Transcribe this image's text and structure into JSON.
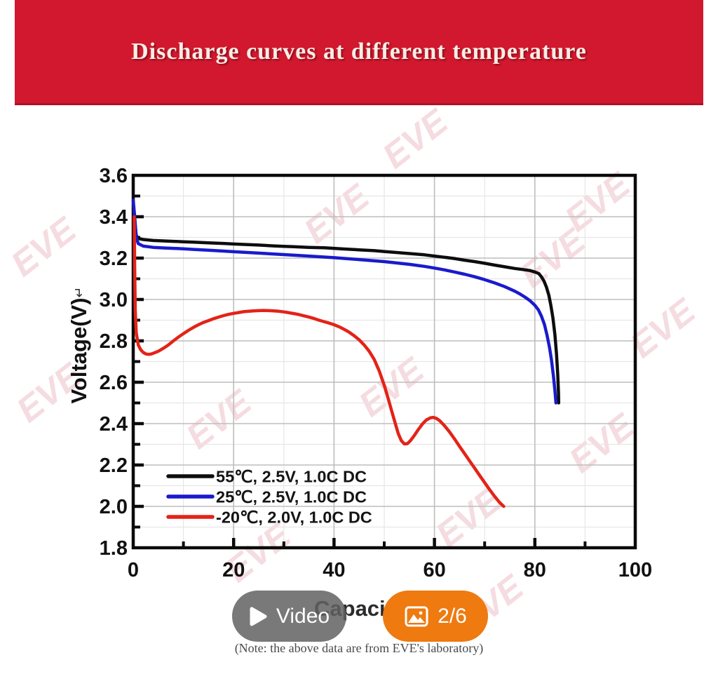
{
  "banner": {
    "title": "Discharge curves at different temperature",
    "bg_color": "#d2182e",
    "text_color": "#f7eee6"
  },
  "watermark": {
    "text": "EVE",
    "color": "#de8c98"
  },
  "chart_data": {
    "type": "line",
    "title": "",
    "xlabel": "Capacity(Ah)",
    "ylabel": "Voltage(V)",
    "ylabel_suffix": "↵",
    "xlim": [
      0,
      100
    ],
    "ylim": [
      1.8,
      3.6
    ],
    "x_tick_labels": [
      "0",
      "20",
      "40",
      "60",
      "80",
      "100"
    ],
    "x_major_ticks": [
      0,
      20,
      40,
      60,
      80,
      100
    ],
    "x_minor_step": 10,
    "y_tick_labels": [
      "1.8",
      "2.0",
      "2.2",
      "2.4",
      "2.6",
      "2.8",
      "3.0",
      "3.2",
      "3.4",
      "3.6"
    ],
    "y_major_ticks": [
      1.8,
      2.0,
      2.2,
      2.4,
      2.6,
      2.8,
      3.0,
      3.2,
      3.4,
      3.6
    ],
    "y_minor_step": 0.1,
    "grid": "major-and-minor",
    "legend_position": "inside-bottom-left",
    "series": [
      {
        "name": "55℃, 2.5V, 1.0C DC",
        "color": "#0d0d0d",
        "points": [
          [
            0,
            3.44
          ],
          [
            0.3,
            3.38
          ],
          [
            0.6,
            3.31
          ],
          [
            1,
            3.295
          ],
          [
            2,
            3.29
          ],
          [
            4,
            3.285
          ],
          [
            6,
            3.283
          ],
          [
            8,
            3.281
          ],
          [
            10,
            3.279
          ],
          [
            12,
            3.277
          ],
          [
            15,
            3.274
          ],
          [
            18,
            3.271
          ],
          [
            20,
            3.268
          ],
          [
            22,
            3.266
          ],
          [
            25,
            3.263
          ],
          [
            28,
            3.259
          ],
          [
            30,
            3.257
          ],
          [
            32,
            3.255
          ],
          [
            35,
            3.252
          ],
          [
            38,
            3.25
          ],
          [
            40,
            3.247
          ],
          [
            42,
            3.244
          ],
          [
            45,
            3.24
          ],
          [
            48,
            3.236
          ],
          [
            50,
            3.232
          ],
          [
            52,
            3.228
          ],
          [
            55,
            3.222
          ],
          [
            58,
            3.216
          ],
          [
            60,
            3.21
          ],
          [
            62,
            3.204
          ],
          [
            64,
            3.198
          ],
          [
            66,
            3.19
          ],
          [
            68,
            3.183
          ],
          [
            70,
            3.175
          ],
          [
            72,
            3.166
          ],
          [
            74,
            3.158
          ],
          [
            76,
            3.15
          ],
          [
            77.5,
            3.145
          ],
          [
            79,
            3.14
          ],
          [
            80,
            3.133
          ],
          [
            80.8,
            3.125
          ],
          [
            81.3,
            3.11
          ],
          [
            81.8,
            3.09
          ],
          [
            82.3,
            3.06
          ],
          [
            82.8,
            3.02
          ],
          [
            83.2,
            2.97
          ],
          [
            83.6,
            2.91
          ],
          [
            84,
            2.83
          ],
          [
            84.3,
            2.74
          ],
          [
            84.55,
            2.64
          ],
          [
            84.7,
            2.55
          ],
          [
            84.75,
            2.5
          ]
        ]
      },
      {
        "name": "25℃, 2.5V, 1.0C DC",
        "color": "#1a1acc",
        "points": [
          [
            0,
            3.48
          ],
          [
            0.3,
            3.4
          ],
          [
            0.6,
            3.3
          ],
          [
            1,
            3.27
          ],
          [
            2,
            3.258
          ],
          [
            4,
            3.252
          ],
          [
            6,
            3.249
          ],
          [
            8,
            3.247
          ],
          [
            10,
            3.245
          ],
          [
            12,
            3.242
          ],
          [
            15,
            3.238
          ],
          [
            18,
            3.234
          ],
          [
            20,
            3.231
          ],
          [
            25,
            3.224
          ],
          [
            30,
            3.217
          ],
          [
            35,
            3.21
          ],
          [
            40,
            3.202
          ],
          [
            45,
            3.193
          ],
          [
            50,
            3.183
          ],
          [
            55,
            3.17
          ],
          [
            58,
            3.16
          ],
          [
            60,
            3.152
          ],
          [
            62,
            3.143
          ],
          [
            64,
            3.133
          ],
          [
            66,
            3.122
          ],
          [
            68,
            3.11
          ],
          [
            70,
            3.096
          ],
          [
            72,
            3.08
          ],
          [
            74,
            3.062
          ],
          [
            76,
            3.04
          ],
          [
            77,
            3.027
          ],
          [
            78,
            3.012
          ],
          [
            79,
            2.995
          ],
          [
            80,
            2.972
          ],
          [
            80.7,
            2.95
          ],
          [
            81.3,
            2.92
          ],
          [
            81.9,
            2.88
          ],
          [
            82.4,
            2.83
          ],
          [
            82.9,
            2.77
          ],
          [
            83.3,
            2.71
          ],
          [
            83.7,
            2.63
          ],
          [
            84,
            2.56
          ],
          [
            84.2,
            2.5
          ]
        ]
      },
      {
        "name": "-20℃, 2.0V, 1.0C DC",
        "color": "#e32318",
        "points": [
          [
            0.2,
            3.4
          ],
          [
            0.3,
            3.15
          ],
          [
            0.4,
            2.95
          ],
          [
            0.6,
            2.84
          ],
          [
            1,
            2.78
          ],
          [
            1.5,
            2.757
          ],
          [
            2,
            2.744
          ],
          [
            2.5,
            2.737
          ],
          [
            3,
            2.735
          ],
          [
            3.5,
            2.736
          ],
          [
            4,
            2.74
          ],
          [
            5,
            2.75
          ],
          [
            6,
            2.764
          ],
          [
            7,
            2.78
          ],
          [
            8,
            2.8
          ],
          [
            9,
            2.818
          ],
          [
            10,
            2.835
          ],
          [
            11,
            2.851
          ],
          [
            12,
            2.865
          ],
          [
            13,
            2.878
          ],
          [
            14,
            2.889
          ],
          [
            15,
            2.898
          ],
          [
            16,
            2.907
          ],
          [
            17,
            2.915
          ],
          [
            18,
            2.922
          ],
          [
            19,
            2.928
          ],
          [
            20,
            2.933
          ],
          [
            21,
            2.937
          ],
          [
            22,
            2.941
          ],
          [
            23,
            2.943
          ],
          [
            24,
            2.945
          ],
          [
            25,
            2.946
          ],
          [
            26,
            2.947
          ],
          [
            27,
            2.946
          ],
          [
            28,
            2.945
          ],
          [
            29,
            2.943
          ],
          [
            30,
            2.94
          ],
          [
            31,
            2.936
          ],
          [
            32,
            2.932
          ],
          [
            33,
            2.927
          ],
          [
            34,
            2.921
          ],
          [
            35,
            2.915
          ],
          [
            36,
            2.908
          ],
          [
            37,
            2.9
          ],
          [
            38,
            2.893
          ],
          [
            39,
            2.886
          ],
          [
            40,
            2.878
          ],
          [
            41,
            2.868
          ],
          [
            42,
            2.856
          ],
          [
            43,
            2.842
          ],
          [
            44,
            2.825
          ],
          [
            45,
            2.805
          ],
          [
            46,
            2.78
          ],
          [
            47,
            2.75
          ],
          [
            48,
            2.71
          ],
          [
            49,
            2.655
          ],
          [
            50,
            2.585
          ],
          [
            50.8,
            2.52
          ],
          [
            51.5,
            2.46
          ],
          [
            52.2,
            2.4
          ],
          [
            52.8,
            2.352
          ],
          [
            53.4,
            2.318
          ],
          [
            54,
            2.302
          ],
          [
            54.6,
            2.303
          ],
          [
            55.2,
            2.317
          ],
          [
            56,
            2.343
          ],
          [
            56.8,
            2.372
          ],
          [
            57.6,
            2.398
          ],
          [
            58.4,
            2.418
          ],
          [
            59.2,
            2.428
          ],
          [
            59.8,
            2.43
          ],
          [
            60.4,
            2.425
          ],
          [
            61,
            2.415
          ],
          [
            62,
            2.39
          ],
          [
            63,
            2.36
          ],
          [
            64,
            2.326
          ],
          [
            65,
            2.29
          ],
          [
            66,
            2.255
          ],
          [
            67,
            2.22
          ],
          [
            68,
            2.185
          ],
          [
            69,
            2.15
          ],
          [
            70,
            2.115
          ],
          [
            71,
            2.08
          ],
          [
            72,
            2.048
          ],
          [
            73,
            2.018
          ],
          [
            73.8,
            2.0
          ]
        ]
      }
    ]
  },
  "overlay": {
    "video_button": {
      "label": "Video",
      "icon": "play-icon",
      "bg_color": "#626262"
    },
    "gallery_button": {
      "label": "2/6",
      "icon": "image-icon",
      "bg_color": "#ee7a10"
    }
  },
  "note": "(Note: the above data are from EVE's laboratory)"
}
